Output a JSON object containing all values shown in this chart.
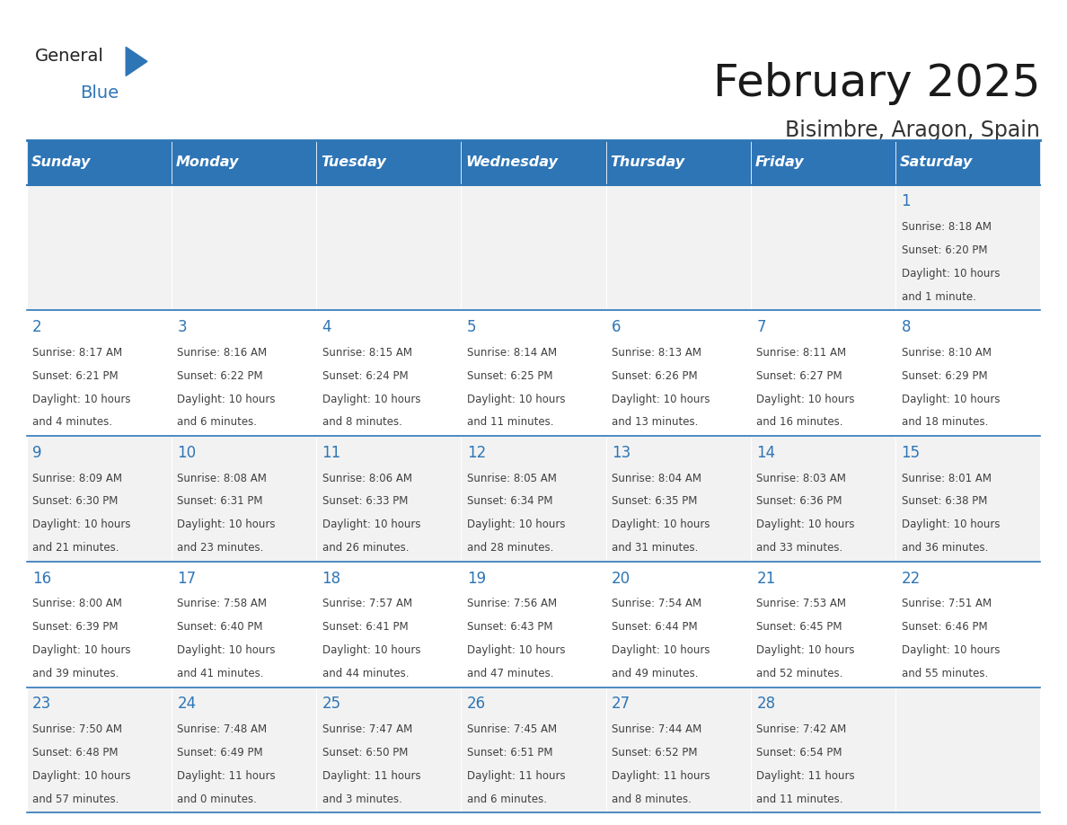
{
  "title": "February 2025",
  "subtitle": "Bisimbre, Aragon, Spain",
  "days_of_week": [
    "Sunday",
    "Monday",
    "Tuesday",
    "Wednesday",
    "Thursday",
    "Friday",
    "Saturday"
  ],
  "header_bg": "#2E75B6",
  "header_text_color": "#FFFFFF",
  "cell_bg_odd": "#F2F2F2",
  "cell_bg_even": "#FFFFFF",
  "border_color": "#2E75B6",
  "day_num_color": "#2E75B6",
  "text_color": "#404040",
  "calendar": [
    [
      null,
      null,
      null,
      null,
      null,
      null,
      {
        "day": 1,
        "sunrise": "8:18 AM",
        "sunset": "6:20 PM",
        "daylight": "10 hours",
        "daylight2": "and 1 minute."
      }
    ],
    [
      {
        "day": 2,
        "sunrise": "8:17 AM",
        "sunset": "6:21 PM",
        "daylight": "10 hours",
        "daylight2": "and 4 minutes."
      },
      {
        "day": 3,
        "sunrise": "8:16 AM",
        "sunset": "6:22 PM",
        "daylight": "10 hours",
        "daylight2": "and 6 minutes."
      },
      {
        "day": 4,
        "sunrise": "8:15 AM",
        "sunset": "6:24 PM",
        "daylight": "10 hours",
        "daylight2": "and 8 minutes."
      },
      {
        "day": 5,
        "sunrise": "8:14 AM",
        "sunset": "6:25 PM",
        "daylight": "10 hours",
        "daylight2": "and 11 minutes."
      },
      {
        "day": 6,
        "sunrise": "8:13 AM",
        "sunset": "6:26 PM",
        "daylight": "10 hours",
        "daylight2": "and 13 minutes."
      },
      {
        "day": 7,
        "sunrise": "8:11 AM",
        "sunset": "6:27 PM",
        "daylight": "10 hours",
        "daylight2": "and 16 minutes."
      },
      {
        "day": 8,
        "sunrise": "8:10 AM",
        "sunset": "6:29 PM",
        "daylight": "10 hours",
        "daylight2": "and 18 minutes."
      }
    ],
    [
      {
        "day": 9,
        "sunrise": "8:09 AM",
        "sunset": "6:30 PM",
        "daylight": "10 hours",
        "daylight2": "and 21 minutes."
      },
      {
        "day": 10,
        "sunrise": "8:08 AM",
        "sunset": "6:31 PM",
        "daylight": "10 hours",
        "daylight2": "and 23 minutes."
      },
      {
        "day": 11,
        "sunrise": "8:06 AM",
        "sunset": "6:33 PM",
        "daylight": "10 hours",
        "daylight2": "and 26 minutes."
      },
      {
        "day": 12,
        "sunrise": "8:05 AM",
        "sunset": "6:34 PM",
        "daylight": "10 hours",
        "daylight2": "and 28 minutes."
      },
      {
        "day": 13,
        "sunrise": "8:04 AM",
        "sunset": "6:35 PM",
        "daylight": "10 hours",
        "daylight2": "and 31 minutes."
      },
      {
        "day": 14,
        "sunrise": "8:03 AM",
        "sunset": "6:36 PM",
        "daylight": "10 hours",
        "daylight2": "and 33 minutes."
      },
      {
        "day": 15,
        "sunrise": "8:01 AM",
        "sunset": "6:38 PM",
        "daylight": "10 hours",
        "daylight2": "and 36 minutes."
      }
    ],
    [
      {
        "day": 16,
        "sunrise": "8:00 AM",
        "sunset": "6:39 PM",
        "daylight": "10 hours",
        "daylight2": "and 39 minutes."
      },
      {
        "day": 17,
        "sunrise": "7:58 AM",
        "sunset": "6:40 PM",
        "daylight": "10 hours",
        "daylight2": "and 41 minutes."
      },
      {
        "day": 18,
        "sunrise": "7:57 AM",
        "sunset": "6:41 PM",
        "daylight": "10 hours",
        "daylight2": "and 44 minutes."
      },
      {
        "day": 19,
        "sunrise": "7:56 AM",
        "sunset": "6:43 PM",
        "daylight": "10 hours",
        "daylight2": "and 47 minutes."
      },
      {
        "day": 20,
        "sunrise": "7:54 AM",
        "sunset": "6:44 PM",
        "daylight": "10 hours",
        "daylight2": "and 49 minutes."
      },
      {
        "day": 21,
        "sunrise": "7:53 AM",
        "sunset": "6:45 PM",
        "daylight": "10 hours",
        "daylight2": "and 52 minutes."
      },
      {
        "day": 22,
        "sunrise": "7:51 AM",
        "sunset": "6:46 PM",
        "daylight": "10 hours",
        "daylight2": "and 55 minutes."
      }
    ],
    [
      {
        "day": 23,
        "sunrise": "7:50 AM",
        "sunset": "6:48 PM",
        "daylight": "10 hours",
        "daylight2": "and 57 minutes."
      },
      {
        "day": 24,
        "sunrise": "7:48 AM",
        "sunset": "6:49 PM",
        "daylight": "11 hours",
        "daylight2": "and 0 minutes."
      },
      {
        "day": 25,
        "sunrise": "7:47 AM",
        "sunset": "6:50 PM",
        "daylight": "11 hours",
        "daylight2": "and 3 minutes."
      },
      {
        "day": 26,
        "sunrise": "7:45 AM",
        "sunset": "6:51 PM",
        "daylight": "11 hours",
        "daylight2": "and 6 minutes."
      },
      {
        "day": 27,
        "sunrise": "7:44 AM",
        "sunset": "6:52 PM",
        "daylight": "11 hours",
        "daylight2": "and 8 minutes."
      },
      {
        "day": 28,
        "sunrise": "7:42 AM",
        "sunset": "6:54 PM",
        "daylight": "11 hours",
        "daylight2": "and 11 minutes."
      },
      null
    ]
  ]
}
